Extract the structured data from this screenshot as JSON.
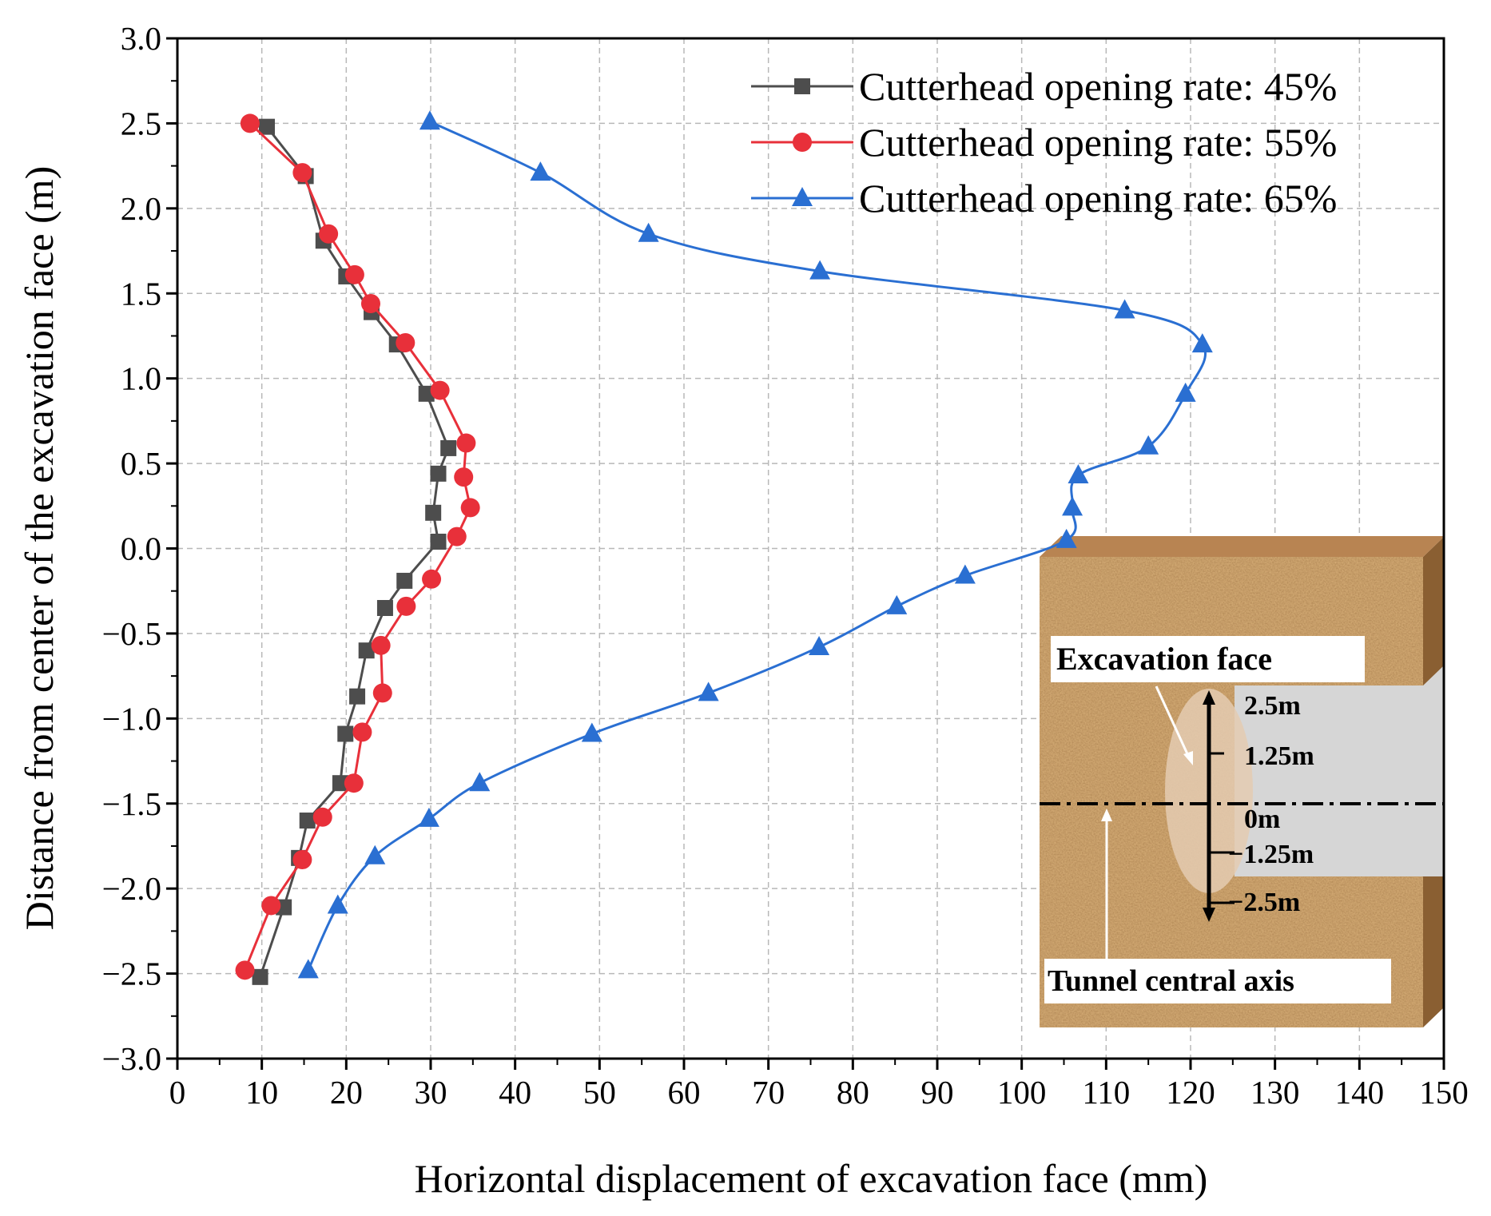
{
  "chart_data": {
    "type": "line",
    "title": "",
    "xlabel": "Horizontal displacement of excavation face (mm)",
    "ylabel": "Distance from center of the excavation face (m)",
    "xlim": [
      0,
      150
    ],
    "ylim": [
      -3.0,
      3.0
    ],
    "x_ticks": [
      0,
      10,
      20,
      30,
      40,
      50,
      60,
      70,
      80,
      90,
      100,
      110,
      120,
      130,
      140,
      150
    ],
    "y_ticks": [
      -3.0,
      -2.5,
      -2.0,
      -1.5,
      -1.0,
      -0.5,
      0.0,
      0.5,
      1.0,
      1.5,
      2.0,
      2.5,
      3.0
    ],
    "x_tick_labels": [
      "0",
      "10",
      "20",
      "30",
      "40",
      "50",
      "60",
      "70",
      "80",
      "90",
      "100",
      "110",
      "120",
      "130",
      "140",
      "150"
    ],
    "y_tick_labels": [
      "−3.0",
      "−2.5",
      "−2.0",
      "−1.5",
      "−1.0",
      "−0.5",
      "0.0",
      "0.5",
      "1.0",
      "1.5",
      "2.0",
      "2.5",
      "3.0"
    ],
    "grid": true,
    "legend_position": "top-right",
    "series": [
      {
        "name": "Cutterhead opening rate: 45%",
        "color": "#4d4d4d",
        "marker": "square",
        "points": [
          [
            10.6,
            2.48
          ],
          [
            15.2,
            2.19
          ],
          [
            17.3,
            1.81
          ],
          [
            20.0,
            1.6
          ],
          [
            23.0,
            1.39
          ],
          [
            26.0,
            1.2
          ],
          [
            29.5,
            0.91
          ],
          [
            32.1,
            0.59
          ],
          [
            30.9,
            0.44
          ],
          [
            30.3,
            0.21
          ],
          [
            30.9,
            0.04
          ],
          [
            26.9,
            -0.19
          ],
          [
            24.6,
            -0.35
          ],
          [
            22.4,
            -0.6
          ],
          [
            21.3,
            -0.87
          ],
          [
            19.9,
            -1.09
          ],
          [
            19.3,
            -1.38
          ],
          [
            15.4,
            -1.6
          ],
          [
            14.4,
            -1.82
          ],
          [
            12.6,
            -2.11
          ],
          [
            9.8,
            -2.52
          ]
        ]
      },
      {
        "name": "Cutterhead opening rate: 55%",
        "color": "#e8303a",
        "marker": "circle",
        "points": [
          [
            8.6,
            2.5
          ],
          [
            14.8,
            2.21
          ],
          [
            17.9,
            1.85
          ],
          [
            21.0,
            1.61
          ],
          [
            22.9,
            1.44
          ],
          [
            27.0,
            1.21
          ],
          [
            31.1,
            0.93
          ],
          [
            34.2,
            0.62
          ],
          [
            33.9,
            0.42
          ],
          [
            34.7,
            0.24
          ],
          [
            33.1,
            0.07
          ],
          [
            30.1,
            -0.18
          ],
          [
            27.1,
            -0.34
          ],
          [
            24.1,
            -0.57
          ],
          [
            24.3,
            -0.85
          ],
          [
            21.9,
            -1.08
          ],
          [
            20.9,
            -1.38
          ],
          [
            17.2,
            -1.58
          ],
          [
            14.8,
            -1.83
          ],
          [
            11.1,
            -2.1
          ],
          [
            8.0,
            -2.48
          ]
        ]
      },
      {
        "name": "Cutterhead opening rate: 65%",
        "color": "#2a6fd2",
        "marker": "triangle",
        "points": [
          [
            29.9,
            2.51
          ],
          [
            43.0,
            2.21
          ],
          [
            55.8,
            1.85
          ],
          [
            76.1,
            1.63
          ],
          [
            112.2,
            1.4
          ],
          [
            121.4,
            1.2
          ],
          [
            119.4,
            0.91
          ],
          [
            115.0,
            0.6
          ],
          [
            106.7,
            0.43
          ],
          [
            106.0,
            0.24
          ],
          [
            105.3,
            0.05
          ],
          [
            93.3,
            -0.16
          ],
          [
            85.2,
            -0.34
          ],
          [
            76.0,
            -0.58
          ],
          [
            62.9,
            -0.85
          ],
          [
            49.1,
            -1.09
          ],
          [
            35.8,
            -1.38
          ],
          [
            29.8,
            -1.59
          ],
          [
            23.4,
            -1.81
          ],
          [
            19.0,
            -2.1
          ],
          [
            15.5,
            -2.48
          ]
        ]
      }
    ],
    "inset": {
      "labels": {
        "excavation_face": "Excavation face",
        "tunnel_axis": "Tunnel central axis",
        "m_2_5": "2.5m",
        "m_1_25": "1.25m",
        "m_0": "0m",
        "m_neg_1_25": "−1.25m",
        "m_neg_2_5": "−2.5m"
      }
    }
  }
}
